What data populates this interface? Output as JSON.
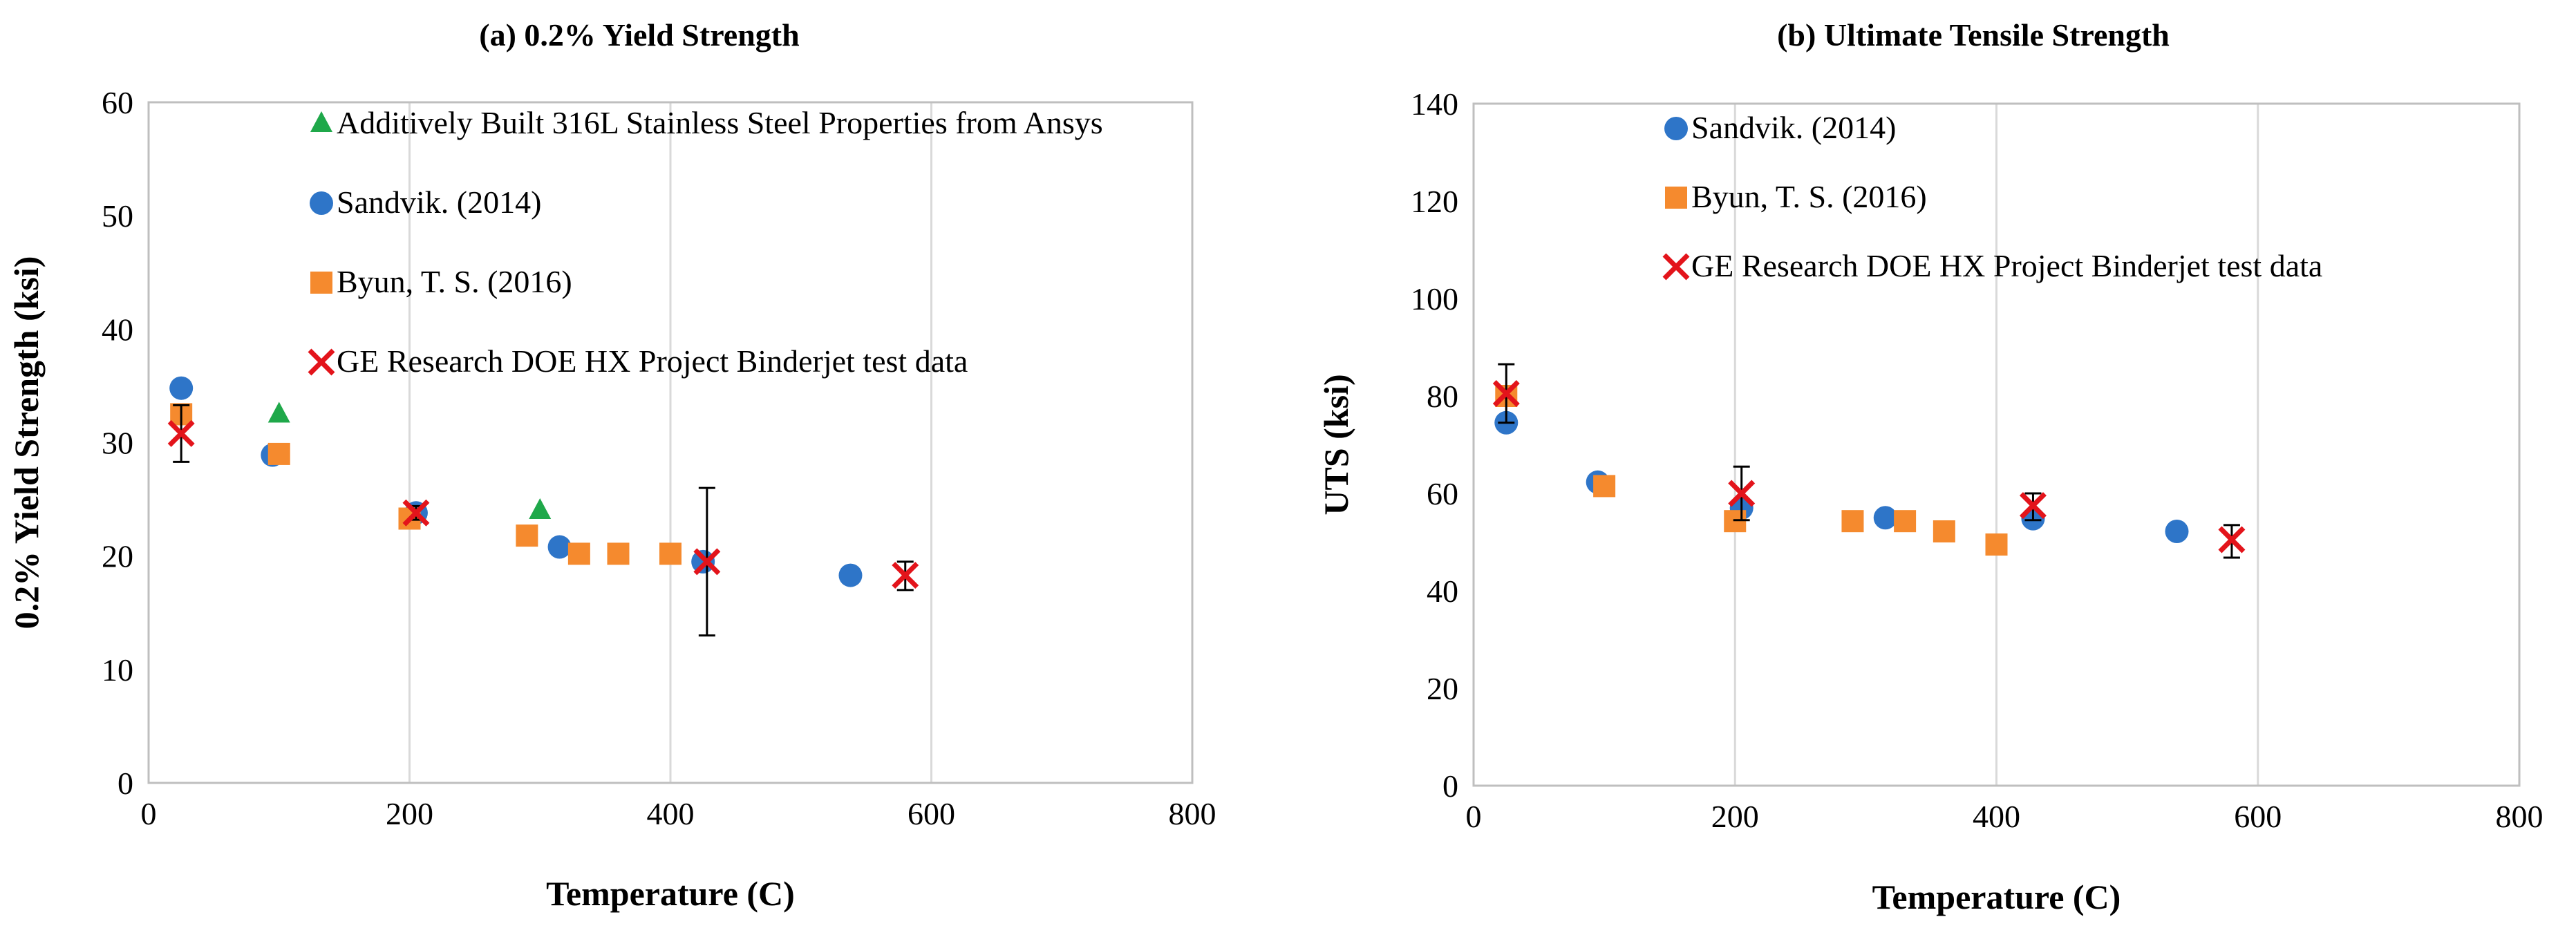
{
  "chart_data": [
    {
      "type": "scatter",
      "title": "(a) 0.2% Yield Strength",
      "xlabel": "Temperature (C)",
      "ylabel": "0.2% Yield Strength (ksi)",
      "xlim": [
        0,
        800
      ],
      "ylim": [
        0,
        60
      ],
      "xticks": [
        "0",
        "200",
        "400",
        "600",
        "800"
      ],
      "yticks": [
        "0",
        "10",
        "20",
        "30",
        "40",
        "50",
        "60"
      ],
      "grid": "vertical",
      "legend_position": "top-left",
      "series": [
        {
          "name": "Additively Built 316L Stainless Steel Properties from Ansys",
          "marker": "triangle",
          "color": "#1fa84a",
          "x": [
            100,
            300
          ],
          "y": [
            32.5,
            24
          ]
        },
        {
          "name": "Sandvik. (2014)",
          "marker": "circle",
          "color": "#2e75c8",
          "x": [
            25,
            95,
            205,
            315,
            425,
            538
          ],
          "y": [
            34.8,
            28.9,
            23.8,
            20.8,
            19.5,
            18.3
          ]
        },
        {
          "name": "Byun, T. S. (2016)",
          "marker": "square",
          "color": "#f58a2e",
          "x": [
            25,
            100,
            200,
            290,
            330,
            360,
            400
          ],
          "y": [
            32.5,
            29,
            23.3,
            21.8,
            20.2,
            20.2,
            20.2
          ]
        },
        {
          "name": "GE Research DOE HX Project Binderjet test data",
          "marker": "x",
          "color": "#e3141b",
          "x": [
            25,
            205,
            428,
            580
          ],
          "y": [
            30.8,
            23.8,
            19.5,
            18.3
          ],
          "error_low": [
            28.3,
            23.2,
            13,
            17
          ],
          "error_high": [
            33.3,
            24.4,
            26,
            19.5
          ]
        }
      ]
    },
    {
      "type": "scatter",
      "title": "(b) Ultimate Tensile Strength",
      "xlabel": "Temperature (C)",
      "ylabel": "UTS (ksi)",
      "xlim": [
        0,
        800
      ],
      "ylim": [
        0,
        140
      ],
      "xticks": [
        "0",
        "200",
        "400",
        "600",
        "800"
      ],
      "yticks": [
        "0",
        "20",
        "40",
        "60",
        "80",
        "100",
        "120",
        "140"
      ],
      "grid": "vertical",
      "legend_position": "top-left",
      "series": [
        {
          "name": "Sandvik. (2014)",
          "marker": "circle",
          "color": "#2e75c8",
          "x": [
            25,
            95,
            205,
            315,
            428,
            538
          ],
          "y": [
            74.5,
            62.3,
            57,
            55,
            54.8,
            52.2
          ]
        },
        {
          "name": "Byun, T. S. (2016)",
          "marker": "square",
          "color": "#f58a2e",
          "x": [
            25,
            100,
            200,
            290,
            330,
            360,
            400
          ],
          "y": [
            80,
            61.5,
            54.3,
            54.3,
            54.3,
            52.2,
            49.5
          ]
        },
        {
          "name": "GE Research DOE HX Project Binderjet test data",
          "marker": "x",
          "color": "#e3141b",
          "x": [
            25,
            205,
            428,
            580
          ],
          "y": [
            80.5,
            60,
            57.5,
            50.5
          ],
          "error_low": [
            74.5,
            54.5,
            54.5,
            46.8
          ],
          "error_high": [
            86.5,
            65.5,
            60,
            53.5
          ]
        }
      ]
    }
  ]
}
